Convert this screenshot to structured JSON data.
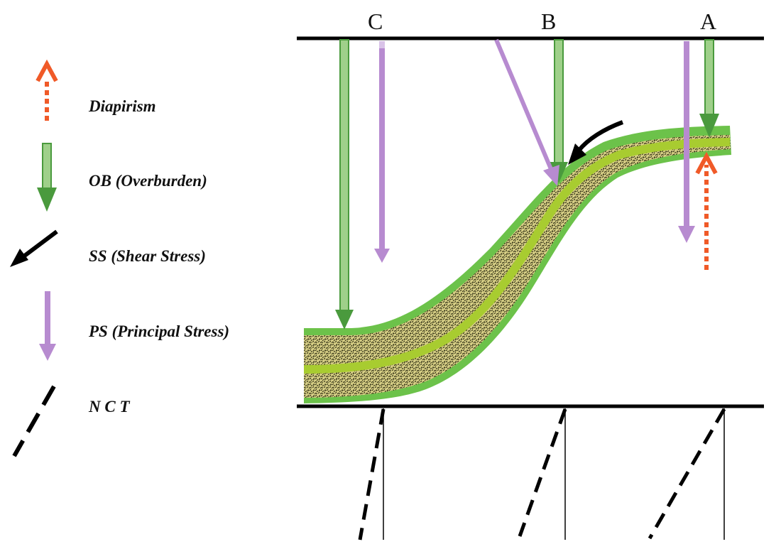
{
  "legend": {
    "diapirism": "Diapirism",
    "overburden": "OB (Overburden)",
    "shear_stress": "SS (Shear Stress)",
    "principal_stress": "PS (Principal Stress)",
    "nct": "N C T"
  },
  "columns": {
    "c": "C",
    "b": "B",
    "a": "A"
  },
  "colors": {
    "diapirism": "#f05a28",
    "overburden": "#4a9a3d",
    "overburden_light": "#9fd08a",
    "principal_stress": "#b78bd0",
    "shear_stress": "#000000",
    "layer_green": "#6cc24a",
    "layer_core": "#a8cc30",
    "sediment_fill": "#d7cf86"
  }
}
